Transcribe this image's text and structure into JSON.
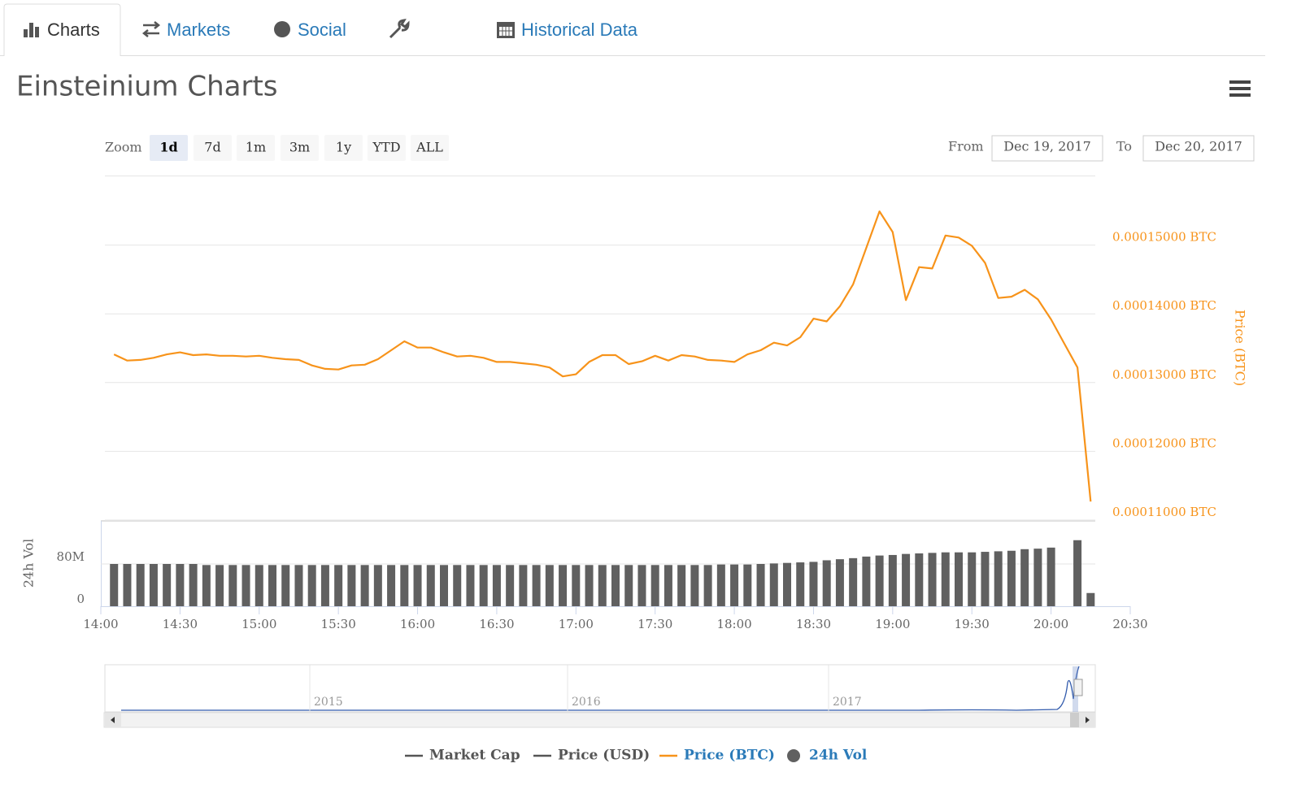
{
  "tabs": [
    "Charts",
    "Markets",
    "Social",
    "Tools",
    "Historical Data"
  ],
  "title": "Einsteinium Charts",
  "zoom": {
    "label": "Zoom",
    "buttons": [
      "1d",
      "7d",
      "1m",
      "3m",
      "1y",
      "YTD",
      "ALL"
    ]
  },
  "range": {
    "from_label": "From",
    "from": "Dec 19, 2017",
    "to_label": "To",
    "to": "Dec 20, 2017"
  },
  "chart_data": {
    "type": "line",
    "xlim": [
      "14:00",
      "20:30"
    ],
    "xticks": [
      "14:00",
      "14:30",
      "15:00",
      "15:30",
      "16:00",
      "16:30",
      "17:00",
      "17:30",
      "18:00",
      "18:30",
      "19:00",
      "19:30",
      "20:00",
      "20:30"
    ],
    "x": [
      "14:05",
      "14:10",
      "14:15",
      "14:20",
      "14:25",
      "14:30",
      "14:35",
      "14:40",
      "14:45",
      "14:50",
      "14:55",
      "15:00",
      "15:05",
      "15:10",
      "15:15",
      "15:20",
      "15:25",
      "15:30",
      "15:35",
      "15:40",
      "15:45",
      "15:50",
      "15:55",
      "16:00",
      "16:05",
      "16:10",
      "16:15",
      "16:20",
      "16:25",
      "16:30",
      "16:35",
      "16:40",
      "16:45",
      "16:50",
      "16:55",
      "17:00",
      "17:05",
      "17:10",
      "17:15",
      "17:20",
      "17:25",
      "17:30",
      "17:35",
      "17:40",
      "17:45",
      "17:50",
      "17:55",
      "18:00",
      "18:05",
      "18:10",
      "18:15",
      "18:20",
      "18:25",
      "18:30",
      "18:35",
      "18:40",
      "18:45",
      "18:50",
      "18:55",
      "19:00",
      "19:05",
      "19:10",
      "19:15",
      "19:20",
      "19:25",
      "19:30",
      "19:35",
      "19:40",
      "19:45",
      "19:50",
      "19:55",
      "20:00",
      "20:05",
      "20:10",
      "20:15"
    ],
    "series": [
      {
        "name": "Market Cap",
        "visible": false
      },
      {
        "name": "Price (USD)",
        "visible": false
      },
      {
        "name": "Price (BTC)",
        "color": "#f7931a",
        "axis": "y2",
        "values": [
          0.0001341,
          0.0001332,
          0.0001333,
          0.0001336,
          0.0001341,
          0.0001344,
          0.000134,
          0.0001341,
          0.0001339,
          0.0001339,
          0.0001338,
          0.0001339,
          0.0001336,
          0.0001334,
          0.0001333,
          0.0001325,
          0.000132,
          0.0001319,
          0.0001325,
          0.0001326,
          0.0001334,
          0.0001347,
          0.000136,
          0.0001351,
          0.0001351,
          0.0001344,
          0.0001338,
          0.0001339,
          0.0001336,
          0.000133,
          0.000133,
          0.0001328,
          0.0001326,
          0.0001322,
          0.0001309,
          0.0001312,
          0.000133,
          0.000134,
          0.000134,
          0.0001327,
          0.0001331,
          0.0001339,
          0.0001332,
          0.000134,
          0.0001338,
          0.0001333,
          0.0001332,
          0.000133,
          0.0001341,
          0.0001347,
          0.0001358,
          0.0001354,
          0.0001366,
          0.0001393,
          0.0001389,
          0.0001411,
          0.0001443,
          0.0001496,
          0.0001549,
          0.0001519,
          0.000142,
          0.0001468,
          0.0001466,
          0.0001514,
          0.0001511,
          0.0001499,
          0.0001474,
          0.0001423,
          0.0001425,
          0.0001435,
          0.0001421,
          0.0001392,
          0.0001357,
          0.0001322,
          0.0001127
        ]
      },
      {
        "name": "24h Vol",
        "color": "#606060",
        "type": "bar",
        "values": [
          80000000,
          80000000,
          80000000,
          80000000,
          80000000,
          80000000,
          80000000,
          78000000,
          78000000,
          78000000,
          78000000,
          78000000,
          78000000,
          78000000,
          78000000,
          78000000,
          78000000,
          78000000,
          78000000,
          78000000,
          78000000,
          78000000,
          78000000,
          78000000,
          78000000,
          78000000,
          78000000,
          78000000,
          78000000,
          78000000,
          78000000,
          78000000,
          78000000,
          78000000,
          78000000,
          78000000,
          78000000,
          78000000,
          78000000,
          78000000,
          78000000,
          78000000,
          78000000,
          78000000,
          78000000,
          78000000,
          79000000,
          79000000,
          79000000,
          80000000,
          81000000,
          82000000,
          83000000,
          84000000,
          87000000,
          89000000,
          91000000,
          94000000,
          96000000,
          97000000,
          99000000,
          100000000,
          101000000,
          102000000,
          102000000,
          102000000,
          103000000,
          104000000,
          105000000,
          108000000,
          109000000,
          111000000,
          null,
          125000000,
          25000000
        ]
      }
    ],
    "y2lim": [
      0.00011,
      0.00016
    ],
    "y2ticks": [
      {
        "value": 0.00011,
        "label": "0.00011000 BTC"
      },
      {
        "value": 0.00012,
        "label": "0.00012000 BTC"
      },
      {
        "value": 0.00013,
        "label": "0.00013000 BTC"
      },
      {
        "value": 0.00014,
        "label": "0.00014000 BTC"
      },
      {
        "value": 0.00015,
        "label": "0.00015000 BTC"
      }
    ],
    "y2_label": "Price (BTC)",
    "ylim": [
      0,
      160000000
    ],
    "yticks": [
      0,
      {
        "value": 80000000,
        "label": "80M"
      }
    ],
    "y_label": "24h Vol",
    "grid": true,
    "navigator": {
      "xticks": [
        "2015",
        "2016",
        "2017"
      ]
    }
  }
}
